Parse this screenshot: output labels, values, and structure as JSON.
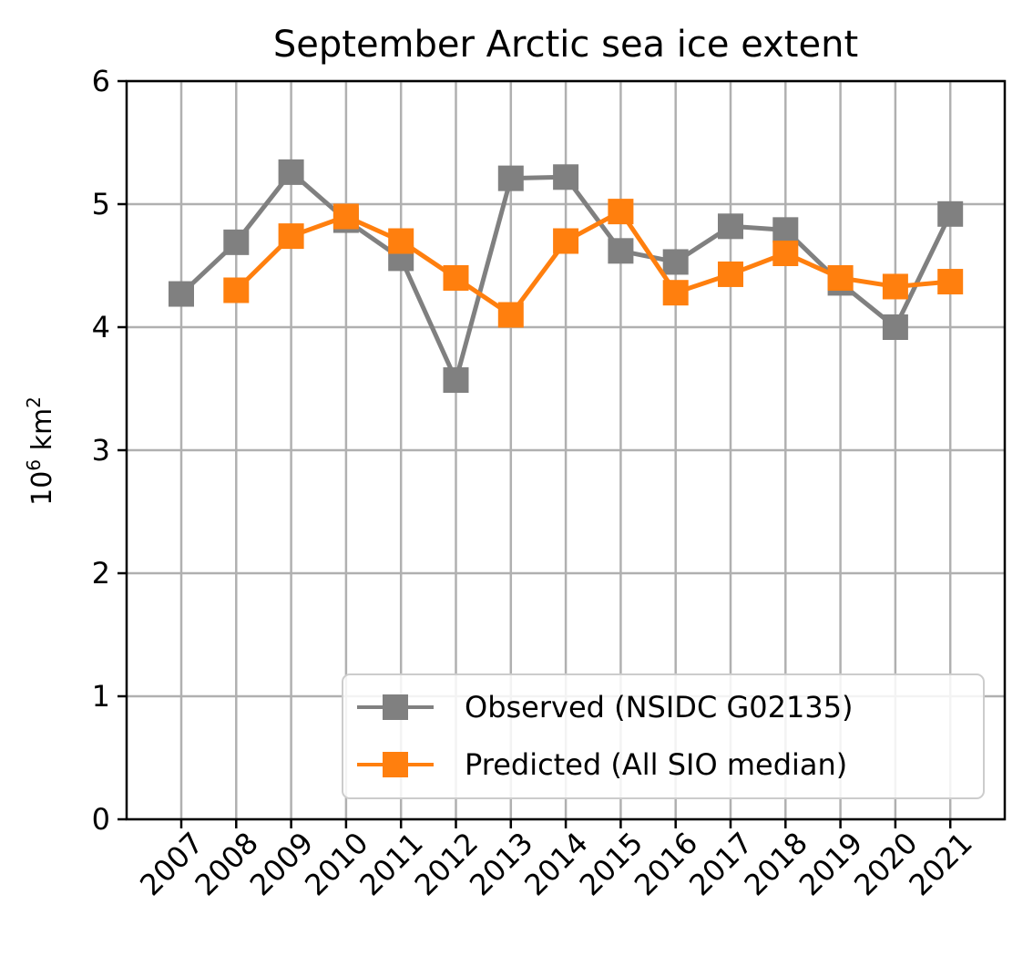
{
  "chart_data": {
    "type": "line",
    "title": "September Arctic sea ice extent",
    "xlabel": "",
    "ylabel": {
      "base": "10",
      "exp1": "6",
      "unit": " km",
      "exp2": "2"
    },
    "categories": [
      "2007",
      "2008",
      "2009",
      "2010",
      "2011",
      "2012",
      "2013",
      "2014",
      "2015",
      "2016",
      "2017",
      "2018",
      "2019",
      "2020",
      "2021"
    ],
    "yticks": [
      "0",
      "1",
      "2",
      "3",
      "4",
      "5",
      "6"
    ],
    "ylim": [
      0,
      6
    ],
    "grid": true,
    "legend_position": "lower-right",
    "series": [
      {
        "name": "Observed (NSIDC G02135)",
        "color": "#808080",
        "marker": "square",
        "values": [
          4.27,
          4.69,
          5.26,
          4.87,
          4.56,
          3.57,
          5.21,
          5.22,
          4.62,
          4.53,
          4.82,
          4.79,
          4.36,
          4.0,
          4.92
        ]
      },
      {
        "name": "Predicted (All SIO median)",
        "color": "#ff7f0e",
        "marker": "square",
        "values": [
          null,
          4.3,
          4.74,
          4.9,
          4.7,
          4.4,
          4.1,
          4.7,
          4.94,
          4.28,
          4.43,
          4.6,
          4.4,
          4.33,
          4.37
        ]
      }
    ]
  }
}
